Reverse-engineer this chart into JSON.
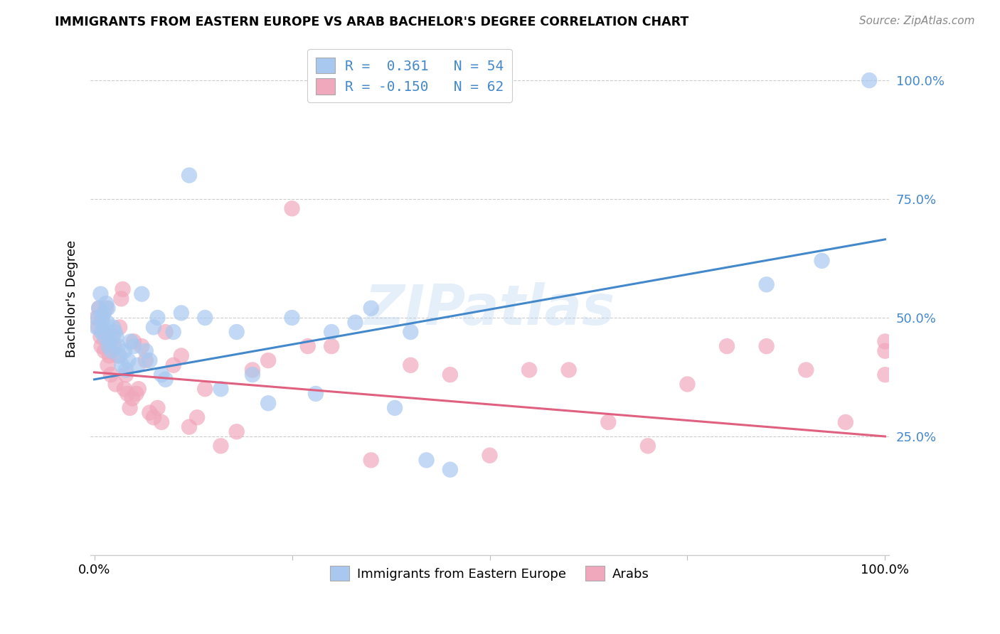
{
  "title": "IMMIGRANTS FROM EASTERN EUROPE VS ARAB BACHELOR'S DEGREE CORRELATION CHART",
  "source": "Source: ZipAtlas.com",
  "ylabel": "Bachelor's Degree",
  "y_ticks": [
    0.25,
    0.5,
    0.75,
    1.0
  ],
  "y_tick_labels": [
    "25.0%",
    "50.0%",
    "75.0%",
    "100.0%"
  ],
  "blue_color": "#a8c8f0",
  "blue_line_color": "#4488cc",
  "pink_color": "#f0a8bc",
  "pink_line_color": "#e06080",
  "legend_blue_label": "R =  0.361   N = 54",
  "legend_pink_label": "R = -0.150   N = 62",
  "legend_label1": "Immigrants from Eastern Europe",
  "legend_label2": "Arabs",
  "watermark": "ZIPatlas",
  "blue_intercept": 0.37,
  "blue_slope": 0.295,
  "pink_intercept": 0.385,
  "pink_slope": -0.135,
  "blue_scatter_x": [
    0.003,
    0.005,
    0.006,
    0.008,
    0.009,
    0.01,
    0.011,
    0.012,
    0.013,
    0.015,
    0.016,
    0.017,
    0.018,
    0.02,
    0.022,
    0.024,
    0.026,
    0.028,
    0.03,
    0.032,
    0.035,
    0.038,
    0.04,
    0.043,
    0.046,
    0.05,
    0.055,
    0.06,
    0.065,
    0.07,
    0.075,
    0.08,
    0.085,
    0.09,
    0.1,
    0.11,
    0.12,
    0.14,
    0.16,
    0.18,
    0.2,
    0.22,
    0.25,
    0.28,
    0.3,
    0.33,
    0.35,
    0.38,
    0.4,
    0.42,
    0.45,
    0.85,
    0.92,
    0.98
  ],
  "blue_scatter_y": [
    0.48,
    0.5,
    0.52,
    0.55,
    0.47,
    0.5,
    0.48,
    0.51,
    0.46,
    0.53,
    0.49,
    0.52,
    0.44,
    0.45,
    0.43,
    0.48,
    0.47,
    0.46,
    0.44,
    0.42,
    0.4,
    0.43,
    0.39,
    0.41,
    0.45,
    0.44,
    0.4,
    0.55,
    0.43,
    0.41,
    0.48,
    0.5,
    0.38,
    0.37,
    0.47,
    0.51,
    0.8,
    0.5,
    0.35,
    0.47,
    0.38,
    0.32,
    0.5,
    0.34,
    0.47,
    0.49,
    0.52,
    0.31,
    0.47,
    0.2,
    0.18,
    0.57,
    0.62,
    1.0
  ],
  "pink_scatter_x": [
    0.003,
    0.005,
    0.006,
    0.008,
    0.009,
    0.01,
    0.012,
    0.013,
    0.015,
    0.017,
    0.019,
    0.021,
    0.023,
    0.025,
    0.027,
    0.03,
    0.032,
    0.034,
    0.036,
    0.038,
    0.04,
    0.042,
    0.045,
    0.048,
    0.05,
    0.053,
    0.056,
    0.06,
    0.065,
    0.07,
    0.075,
    0.08,
    0.085,
    0.09,
    0.1,
    0.11,
    0.12,
    0.13,
    0.14,
    0.16,
    0.18,
    0.2,
    0.22,
    0.25,
    0.27,
    0.3,
    0.35,
    0.4,
    0.45,
    0.5,
    0.55,
    0.6,
    0.65,
    0.7,
    0.75,
    0.8,
    0.85,
    0.9,
    0.95,
    1.0,
    1.0,
    1.0
  ],
  "pink_scatter_y": [
    0.5,
    0.48,
    0.52,
    0.46,
    0.44,
    0.5,
    0.47,
    0.43,
    0.52,
    0.4,
    0.42,
    0.38,
    0.46,
    0.44,
    0.36,
    0.42,
    0.48,
    0.54,
    0.56,
    0.35,
    0.38,
    0.34,
    0.31,
    0.33,
    0.45,
    0.34,
    0.35,
    0.44,
    0.41,
    0.3,
    0.29,
    0.31,
    0.28,
    0.47,
    0.4,
    0.42,
    0.27,
    0.29,
    0.35,
    0.23,
    0.26,
    0.39,
    0.41,
    0.73,
    0.44,
    0.44,
    0.2,
    0.4,
    0.38,
    0.21,
    0.39,
    0.39,
    0.28,
    0.23,
    0.36,
    0.44,
    0.44,
    0.39,
    0.28,
    0.38,
    0.45,
    0.43
  ]
}
